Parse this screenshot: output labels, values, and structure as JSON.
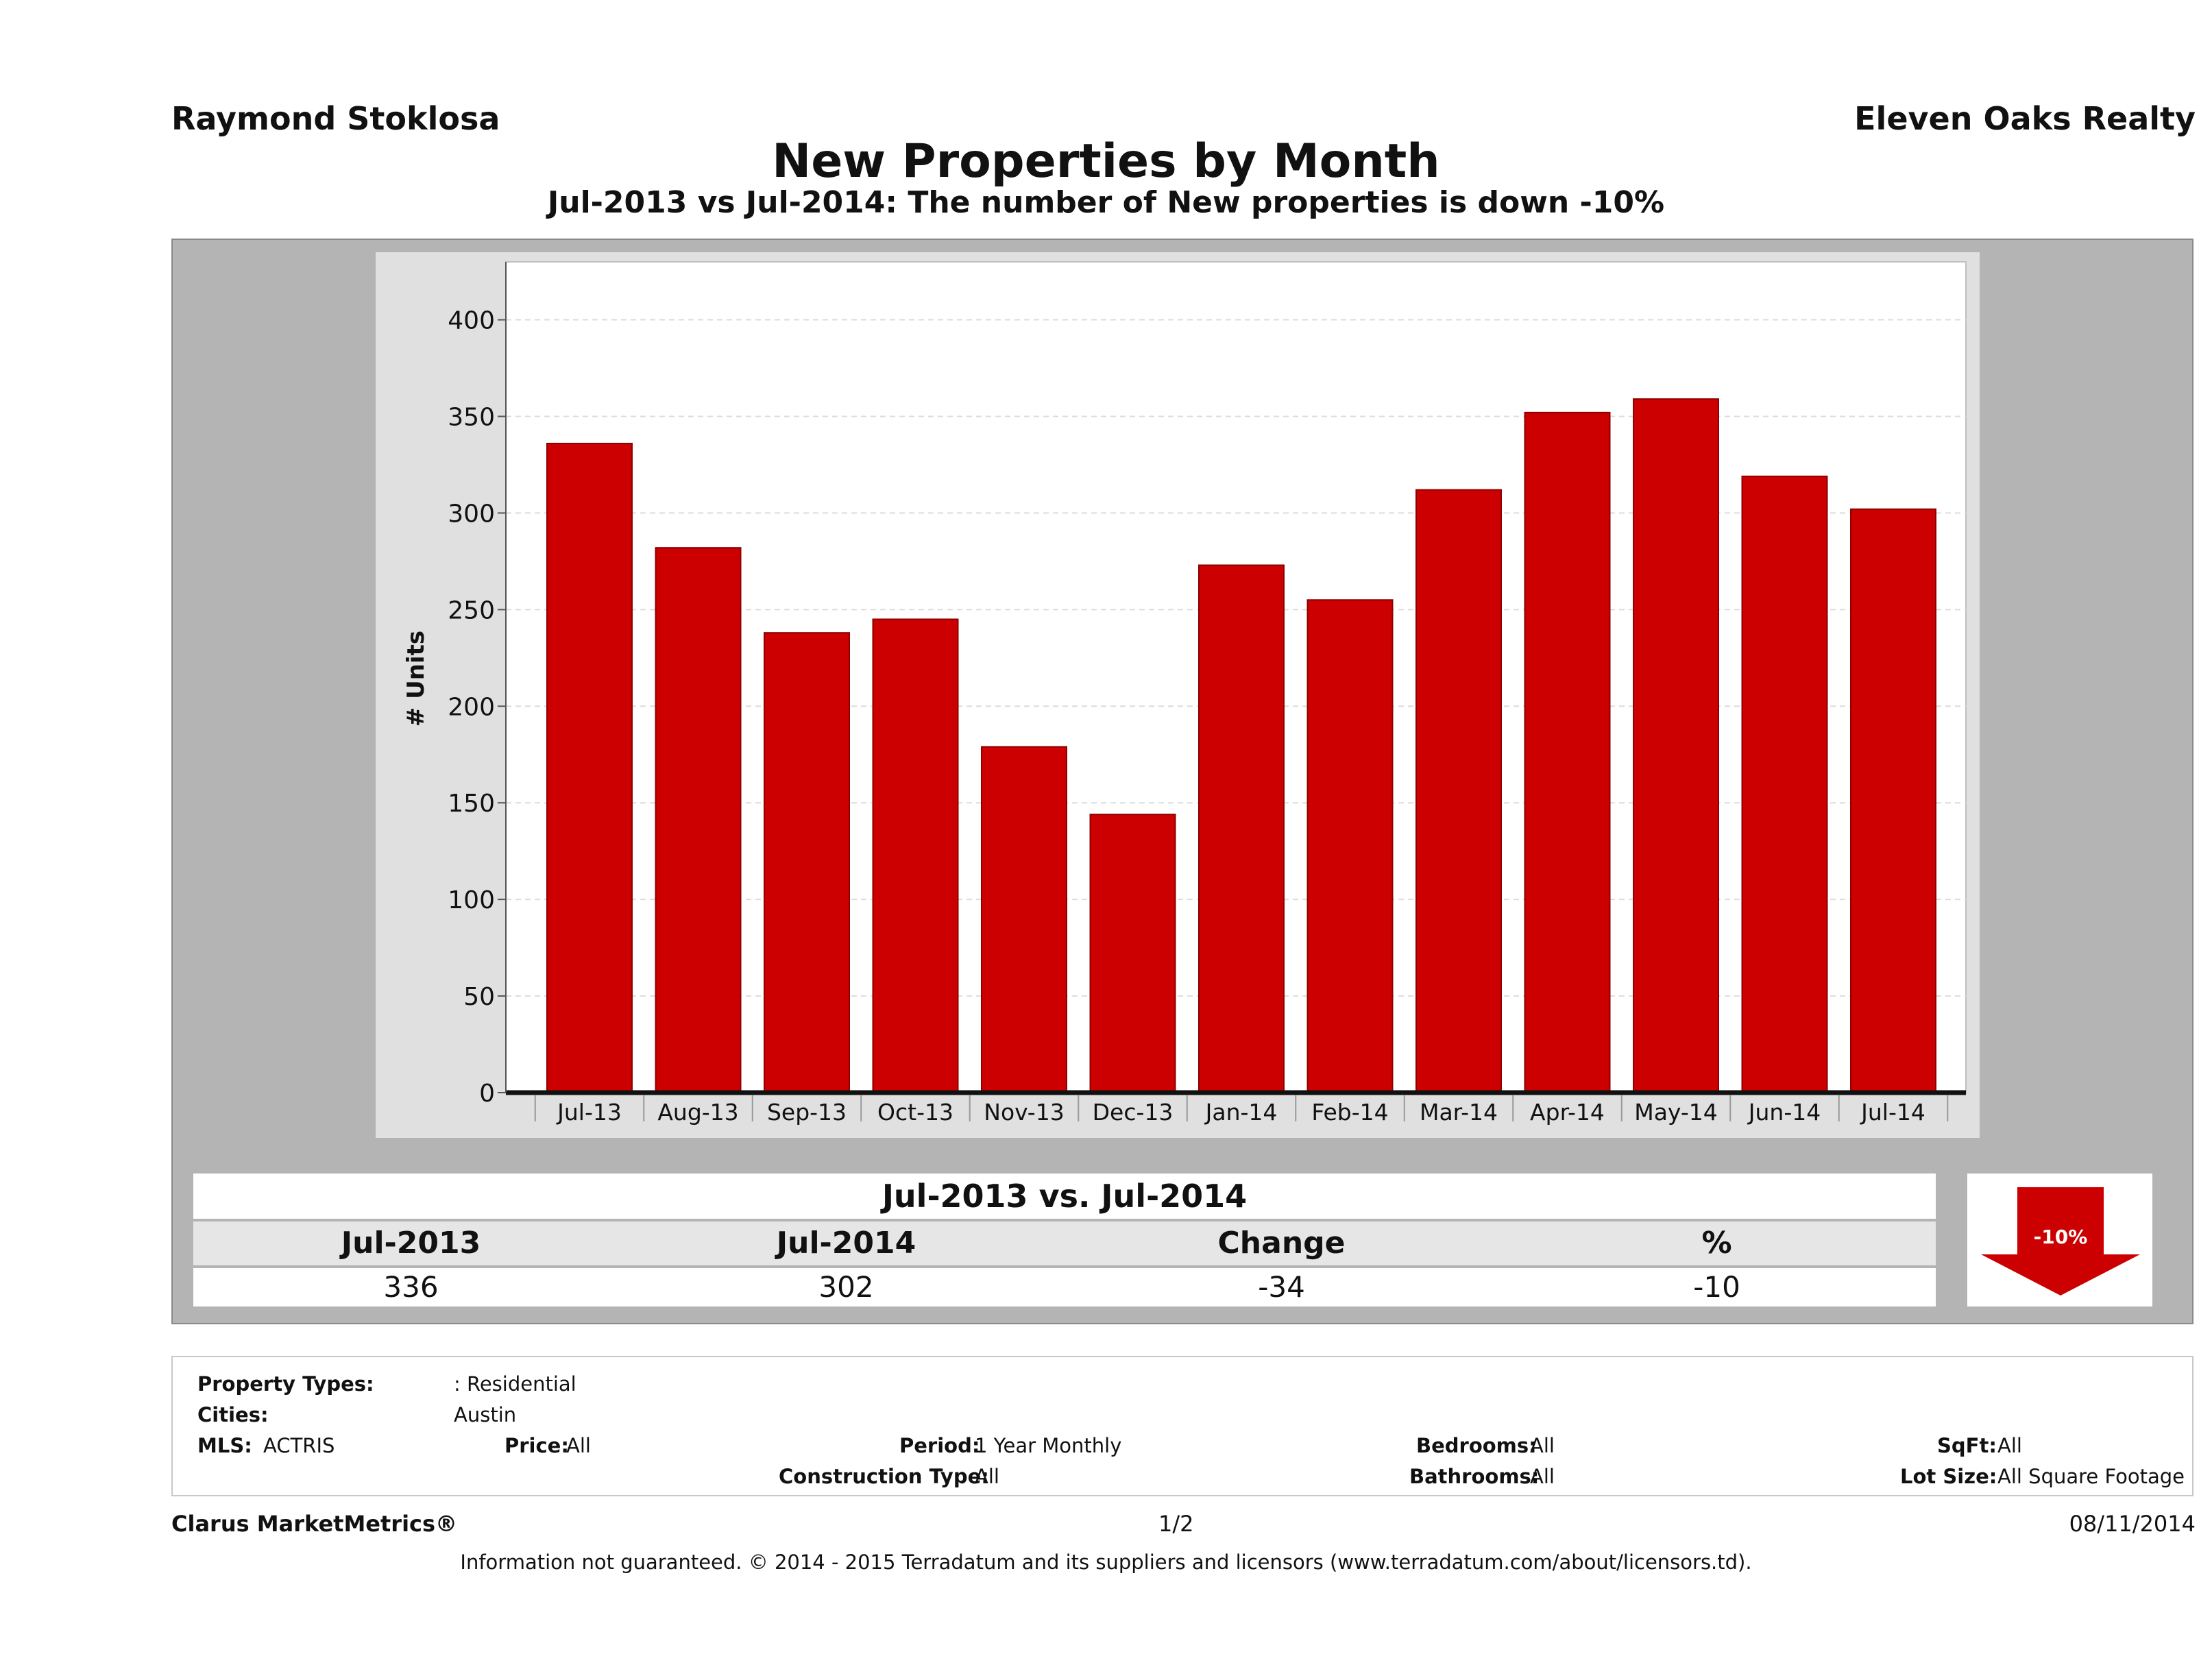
{
  "header": {
    "agent": "Raymond Stoklosa",
    "company": "Eleven Oaks Realty",
    "title": "New Properties by Month",
    "subtitle": "Jul-2013 vs Jul-2014: The number of New  properties is down -10%"
  },
  "chart_data": {
    "type": "bar",
    "categories": [
      "Jul-13",
      "Aug-13",
      "Sep-13",
      "Oct-13",
      "Nov-13",
      "Dec-13",
      "Jan-14",
      "Feb-14",
      "Mar-14",
      "Apr-14",
      "May-14",
      "Jun-14",
      "Jul-14"
    ],
    "values": [
      336,
      282,
      238,
      245,
      179,
      144,
      273,
      255,
      312,
      352,
      359,
      319,
      302
    ],
    "ylabel": "# Units",
    "xlabel": "",
    "ylim": [
      0,
      430
    ],
    "yticks": [
      0,
      50,
      100,
      150,
      200,
      250,
      300,
      350,
      400
    ],
    "grid": true,
    "bar_color": "#cc0000"
  },
  "summary": {
    "header": "Jul-2013 vs. Jul-2014",
    "columns": [
      "Jul-2013",
      "Jul-2014",
      "Change",
      "%"
    ],
    "values": [
      "336",
      "302",
      "-34",
      "-10"
    ],
    "badge": "-10%"
  },
  "filters": {
    "property_types_label": "Property Types:",
    "property_types_value": ": Residential",
    "cities_label": "Cities:",
    "cities_value": "Austin",
    "mls_label": "MLS:",
    "mls_value": "ACTRIS",
    "price_label": "Price:",
    "price_value": "All",
    "period_label": "Period:",
    "period_value": "1 Year Monthly",
    "bedrooms_label": "Bedrooms:",
    "bedrooms_value": "All",
    "sqft_label": "SqFt:",
    "sqft_value": "All",
    "construction_label": "Construction Type:",
    "construction_value": "All",
    "bathrooms_label": "Bathrooms:",
    "bathrooms_value": "All",
    "lotsize_label": "Lot Size:",
    "lotsize_value": "All Square Footage"
  },
  "footer": {
    "brand": "Clarus MarketMetrics®",
    "page": "1/2",
    "date": "08/11/2014",
    "disclaimer": "Information not guaranteed. © 2014 - 2015 Terradatum and its suppliers and licensors (www.terradatum.com/about/licensors.td)."
  }
}
